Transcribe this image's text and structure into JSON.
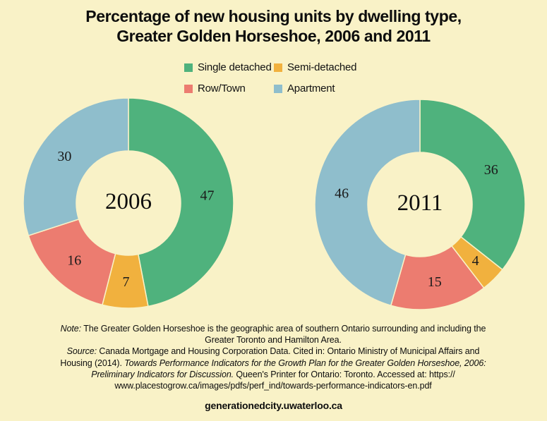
{
  "title": {
    "line1": "Percentage of new housing units by dwelling type,",
    "line2": "Greater Golden Horseshoe, 2006 and 2011"
  },
  "colors": {
    "background": "#F9F2C7",
    "text": "#0d0d0d",
    "single_detached": "#4FB27D",
    "semi_detached": "#F1B13E",
    "row_town": "#EC7C70",
    "apartment": "#8FBECC"
  },
  "legend": {
    "items": [
      {
        "label": "Single detached",
        "color": "#4FB27D"
      },
      {
        "label": "Semi-detached",
        "color": "#F1B13E"
      },
      {
        "label": "Row/Town",
        "color": "#EC7C70"
      },
      {
        "label": "Apartment",
        "color": "#8FBECC"
      }
    ]
  },
  "chart_data": [
    {
      "type": "pie",
      "subtype": "donut",
      "center_label": "2006",
      "categories": [
        "Single detached",
        "Semi-detached",
        "Row/Town",
        "Apartment"
      ],
      "values": [
        47,
        7,
        16,
        30
      ],
      "colors": [
        "#4FB27D",
        "#F1B13E",
        "#EC7C70",
        "#8FBECC"
      ],
      "unit": "percent",
      "start_angle_deg": 0,
      "direction": "clockwise",
      "legend_position": "top",
      "value_labels_shown": true
    },
    {
      "type": "pie",
      "subtype": "donut",
      "center_label": "2011",
      "categories": [
        "Single detached",
        "Semi-detached",
        "Row/Town",
        "Apartment"
      ],
      "values": [
        36,
        4,
        15,
        46
      ],
      "colors": [
        "#4FB27D",
        "#F1B13E",
        "#EC7C70",
        "#8FBECC"
      ],
      "unit": "percent",
      "start_angle_deg": 0,
      "direction": "clockwise",
      "legend_position": "top",
      "value_labels_shown": true
    }
  ],
  "footnote": {
    "lines": [
      [
        {
          "text": "Note:",
          "italic": true
        },
        {
          "text": " The Greater Golden Horseshoe is the geographic area of southern Ontario surrounding and including the",
          "italic": false
        }
      ],
      [
        {
          "text": "Greater Toronto and Hamilton Area.",
          "italic": false
        }
      ],
      [
        {
          "text": "Source:",
          "italic": true
        },
        {
          "text": " Canada Mortgage and Housing Corporation Data. Cited in: Ontario Ministry of Municipal Affairs and",
          "italic": false
        }
      ],
      [
        {
          "text": "Housing (2014). ",
          "italic": false
        },
        {
          "text": "Towards Performance Indicators for the Growth Plan for the Greater Golden Horseshoe, 2006:",
          "italic": true
        }
      ],
      [
        {
          "text": "Preliminary Indicators for Discussion.",
          "italic": true
        },
        {
          "text": " Queen's Printer for Ontario: Toronto. Accessed at: https://",
          "italic": false
        }
      ],
      [
        {
          "text": "www.placestogrow.ca/images/pdfs/perf_ind/towards-performance-indicators-en.pdf",
          "italic": false
        }
      ]
    ]
  },
  "footer": {
    "website": "generationedcity.uwaterloo.ca"
  }
}
